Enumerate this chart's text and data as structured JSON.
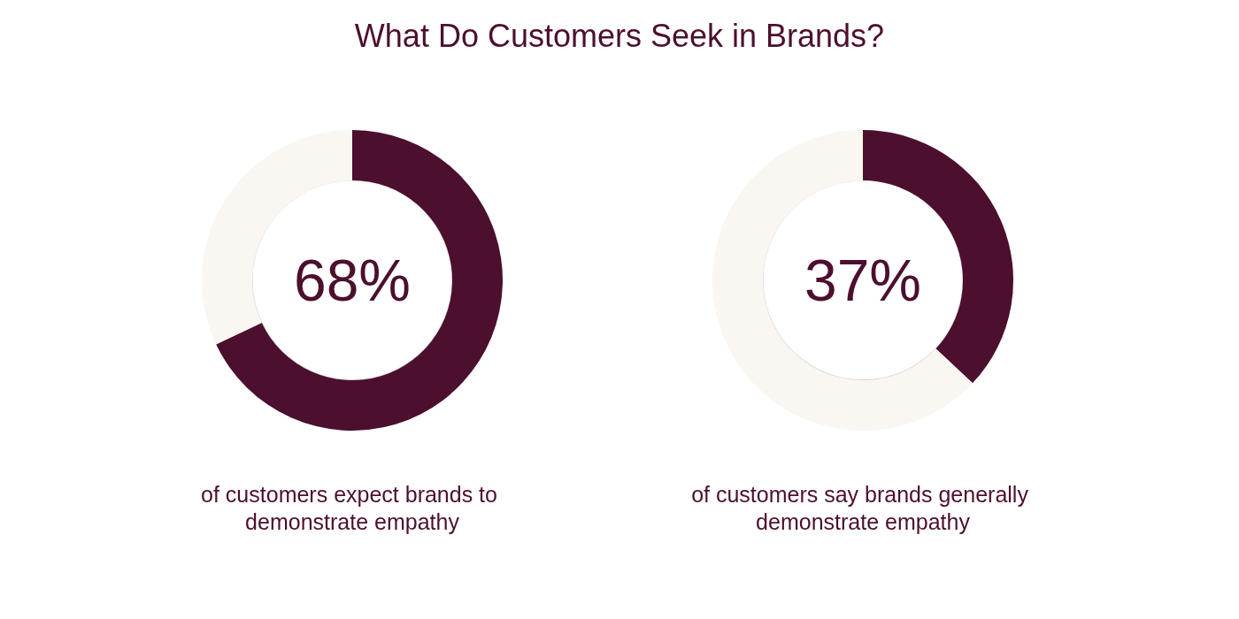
{
  "chart_data": [
    {
      "type": "donut",
      "title": "What Do Customers Seek in Brands?",
      "categories": [
        null,
        null
      ],
      "values": [
        68,
        32
      ],
      "colors": [
        "#4d0f2e",
        "#faf6f2"
      ],
      "value_labels": [
        "68%",
        null
      ],
      "annotations": [
        "of customers expect brands to demonstrate empathy"
      ]
    },
    {
      "type": "donut",
      "categories": [
        null,
        null
      ],
      "values": [
        37,
        63
      ],
      "colors": [
        "#4d0f2e",
        "#faf6f2"
      ],
      "value_labels": [
        "37%",
        null
      ],
      "annotations": [
        "of customers say brands generally demonstrate empathy"
      ]
    }
  ]
}
